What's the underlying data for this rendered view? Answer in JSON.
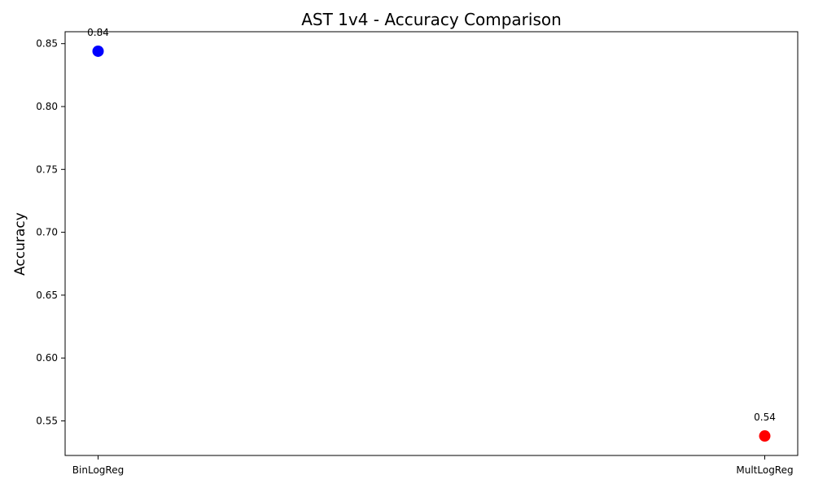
{
  "chart_data": {
    "type": "scatter",
    "title": "AST 1v4 - Accuracy Comparison",
    "xlabel": "",
    "ylabel": "Accuracy",
    "categories": [
      "BinLogReg",
      "MultLogReg"
    ],
    "values": [
      0.844,
      0.538
    ],
    "data_labels": [
      "0.84",
      "0.54"
    ],
    "colors": [
      "#0000ff",
      "#ff0000"
    ],
    "ylim": [
      0.5225,
      0.8595
    ],
    "yticks": [
      0.55,
      0.6,
      0.65,
      0.7,
      0.75,
      0.8,
      0.85
    ],
    "ytick_labels": [
      "0.55",
      "0.60",
      "0.65",
      "0.70",
      "0.75",
      "0.80",
      "0.85"
    ],
    "grid": false,
    "legend": "none"
  }
}
